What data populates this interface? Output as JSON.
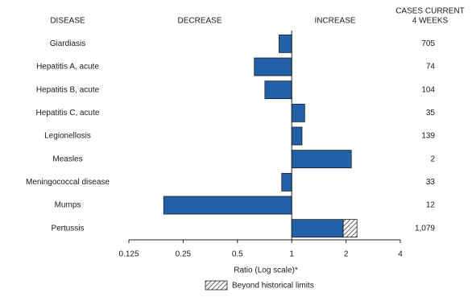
{
  "chart_data": {
    "type": "bar",
    "orientation": "horizontal",
    "log_scale": true,
    "log_base": 2,
    "headers": {
      "disease": "DISEASE",
      "decrease": "DECREASE",
      "increase": "INCREASE",
      "cases": [
        "CASES CURRENT",
        "4 WEEKS"
      ]
    },
    "categories": [
      "Giardiasis",
      "Hepatitis A, acute",
      "Hepatitis B, acute",
      "Hepatitis C, acute",
      "Legionellosis",
      "Measles",
      "Meningococcal disease",
      "Mumps",
      "Pertussis"
    ],
    "values": [
      0.85,
      0.62,
      0.71,
      1.18,
      1.14,
      2.14,
      0.88,
      0.195,
      2.3
    ],
    "color": "#2260a8",
    "cases": [
      "705",
      "74",
      "104",
      "35",
      "139",
      "2",
      "33",
      "12",
      "1,079"
    ],
    "beyond_historical_limits": {
      "label": "Beyond historical limits",
      "from": [
        null,
        null,
        null,
        null,
        null,
        null,
        null,
        null,
        1.93
      ]
    },
    "x_label": "Ratio (Log scale)*",
    "xlim": [
      0.125,
      4
    ],
    "xticks": [
      0.125,
      0.25,
      0.5,
      1,
      2,
      4
    ],
    "baseline": 1
  }
}
